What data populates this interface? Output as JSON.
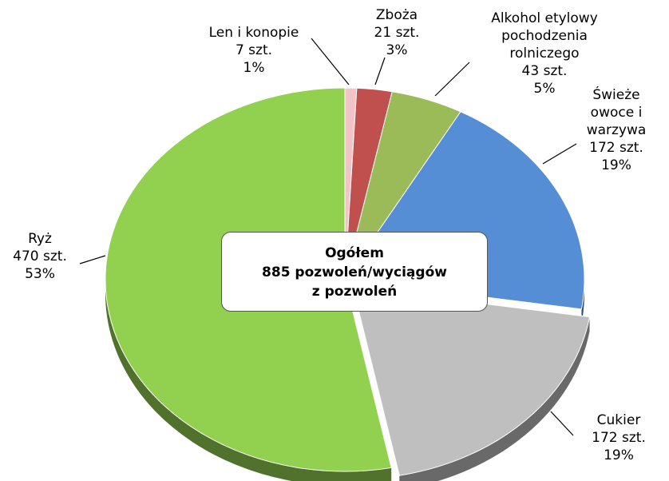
{
  "chart_data": {
    "type": "pie",
    "categories": [
      "Len i konopie",
      "Zboża",
      "Alkohol etylowy pochodzenia rolniczego",
      "Świeże owoce i warzywa",
      "Cukier",
      "Ryż"
    ],
    "values": [
      7,
      21,
      43,
      172,
      172,
      470
    ],
    "value_labels": [
      "7 szt.",
      "21 szt.",
      "43 szt.",
      "172 szt.",
      "172 szt.",
      "470 szt."
    ],
    "percent_labels": [
      "1%",
      "3%",
      "5%",
      "19%",
      "19%",
      "53%"
    ],
    "colors": [
      "#f2c4c8",
      "#c0504d",
      "#9bbb59",
      "#558ed5",
      "#bfbfbf",
      "#92d050"
    ],
    "center_label": [
      "Ogółem",
      "885 pozwoleń/wyciągów",
      "z pozwoleń"
    ]
  }
}
